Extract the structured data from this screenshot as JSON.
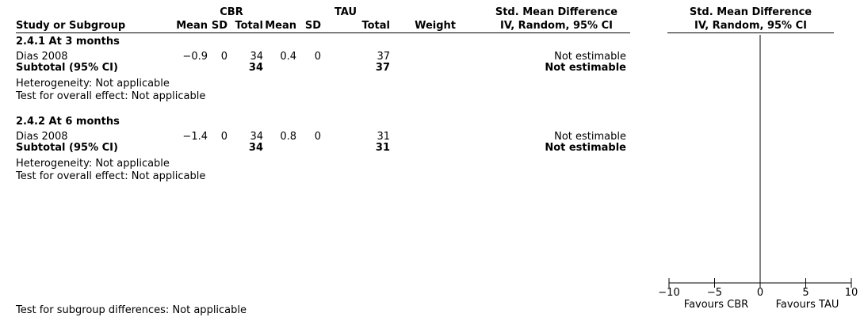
{
  "groups": {
    "a": "CBR",
    "b": "TAU"
  },
  "headers": {
    "study": "Study or Subgroup",
    "mean": "Mean",
    "sd": "SD",
    "total": "Total",
    "weight": "Weight",
    "effect_title": "Std. Mean Difference",
    "effect_method": "IV, Random, 95% CI"
  },
  "subgroups": [
    {
      "title": "2.4.1 At 3 months",
      "study": {
        "name": "Dias 2008",
        "a_mean": "−0.9",
        "a_sd": "0",
        "a_total": "34",
        "b_mean": "0.4",
        "b_sd": "0",
        "b_total": "37",
        "weight": "",
        "effect": "Not estimable"
      },
      "subtotal": {
        "label": "Subtotal (95% CI)",
        "a_total": "34",
        "b_total": "37",
        "effect": "Not estimable"
      },
      "heterogeneity": "Heterogeneity: Not applicable",
      "overall": "Test for overall effect: Not applicable"
    },
    {
      "title": "2.4.2 At 6 months",
      "study": {
        "name": "Dias 2008",
        "a_mean": "−1.4",
        "a_sd": "0",
        "a_total": "34",
        "b_mean": "0.8",
        "b_sd": "0",
        "b_total": "31",
        "weight": "",
        "effect": "Not estimable"
      },
      "subtotal": {
        "label": "Subtotal (95% CI)",
        "a_total": "34",
        "b_total": "31",
        "effect": "Not estimable"
      },
      "heterogeneity": "Heterogeneity: Not applicable",
      "overall": "Test for overall effect: Not applicable"
    }
  ],
  "footer": "Test for subgroup differences: Not applicable",
  "chart_data": {
    "type": "forest",
    "xlim": [
      -10,
      10
    ],
    "ticks": [
      -10,
      -5,
      0,
      5,
      10
    ],
    "tick_labels": [
      "−10",
      "−5",
      "0",
      "5",
      "10"
    ],
    "favours_left": "Favours CBR",
    "favours_right": "Favours TAU",
    "null_line": 0,
    "studies": [
      {
        "subgroup": "2.4.1 At 3 months",
        "name": "Dias 2008",
        "estimate": null,
        "ci": null
      },
      {
        "subgroup": "2.4.2 At 6 months",
        "name": "Dias 2008",
        "estimate": null,
        "ci": null
      }
    ]
  }
}
